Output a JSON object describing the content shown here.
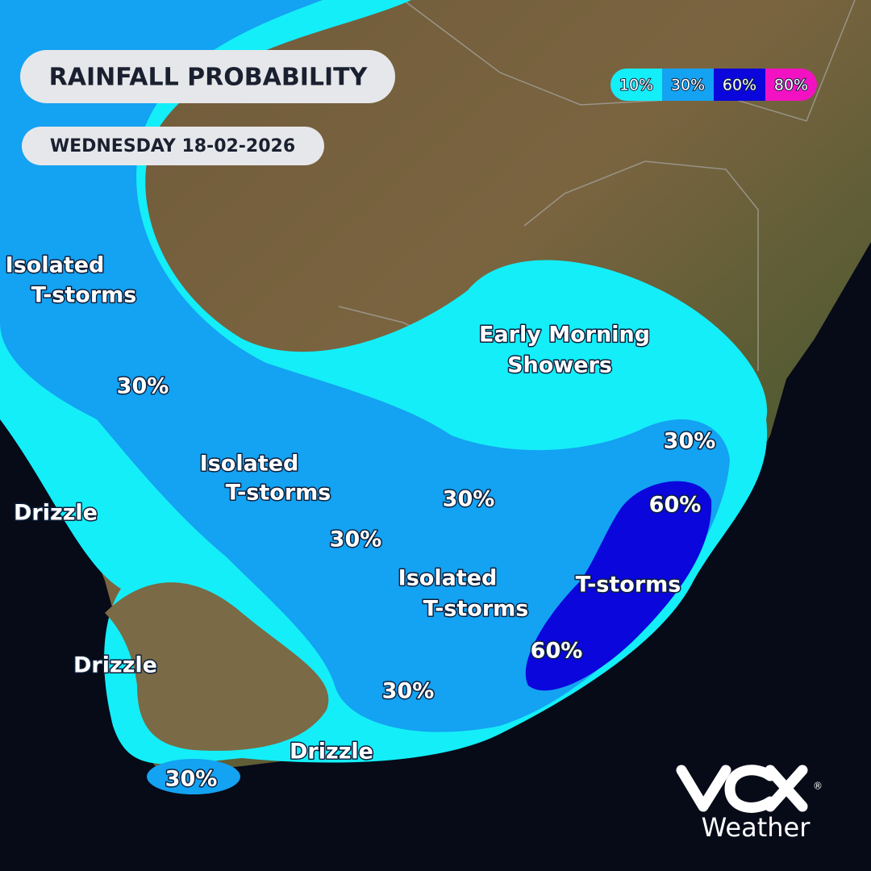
{
  "header": {
    "title": "RAINFALL PROBABILITY",
    "date": "WEDNESDAY 18-02-2026"
  },
  "legend": [
    {
      "label": "10%",
      "color": "#14eef8"
    },
    {
      "label": "30%",
      "color": "#14a2f2"
    },
    {
      "label": "60%",
      "color": "#0a06dc"
    },
    {
      "label": "80%",
      "color": "#f212c2"
    }
  ],
  "labels": [
    {
      "lines": [
        "Isolated",
        "T-storms"
      ]
    },
    {
      "lines": [
        "30%"
      ]
    },
    {
      "lines": [
        "Early Morning",
        "Showers"
      ]
    },
    {
      "lines": [
        "30%"
      ]
    },
    {
      "lines": [
        "Isolated",
        "T-storms"
      ]
    },
    {
      "lines": [
        "30%"
      ]
    },
    {
      "lines": [
        "60%"
      ]
    },
    {
      "lines": [
        "Drizzle"
      ]
    },
    {
      "lines": [
        "30%"
      ]
    },
    {
      "lines": [
        "Isolated",
        "T-storms"
      ]
    },
    {
      "lines": [
        "T-storms"
      ]
    },
    {
      "lines": [
        "60%"
      ]
    },
    {
      "lines": [
        "Drizzle"
      ]
    },
    {
      "lines": [
        "30%"
      ]
    },
    {
      "lines": [
        "Drizzle"
      ]
    },
    {
      "lines": [
        "30%"
      ]
    }
  ],
  "logo": {
    "mark": "®",
    "text": "Weather"
  }
}
